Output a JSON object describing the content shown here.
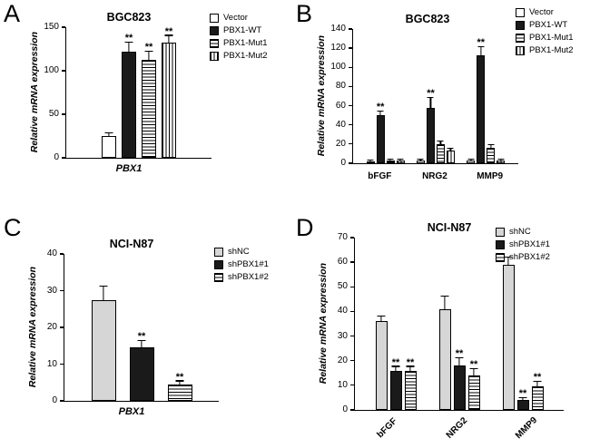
{
  "figure_background": "#ffffff",
  "colors": {
    "axis": "#000000",
    "bar_black": "#1a1a1a",
    "bar_white": "#ffffff",
    "bar_lightgray": "#d6d6d6"
  },
  "chart_data": [
    {
      "panel": "A",
      "type": "bar",
      "title": "BGC823",
      "ylabel": "Relative mRNA expression",
      "xlabel": "PBX1",
      "ylim": [
        0,
        150
      ],
      "yticks": [
        0,
        50,
        100,
        150
      ],
      "categories": [
        "PBX1"
      ],
      "legend_position": "right-outside",
      "series": [
        {
          "name": "Vector",
          "pattern": "white",
          "values": [
            25
          ],
          "errors": [
            3
          ],
          "sig": [
            ""
          ]
        },
        {
          "name": "PBX1-WT",
          "pattern": "black",
          "values": [
            122
          ],
          "errors": [
            10
          ],
          "sig": [
            "**"
          ]
        },
        {
          "name": "PBX1-Mut1",
          "pattern": "hstripe",
          "values": [
            113
          ],
          "errors": [
            9
          ],
          "sig": [
            "**"
          ]
        },
        {
          "name": "PBX1-Mut2",
          "pattern": "vstripe",
          "values": [
            132
          ],
          "errors": [
            8
          ],
          "sig": [
            "**"
          ]
        }
      ]
    },
    {
      "panel": "B",
      "type": "bar",
      "title": "BGC823",
      "ylabel": "Relative mRNA expression",
      "xlabel": "",
      "ylim": [
        0,
        140
      ],
      "yticks": [
        0,
        20,
        40,
        60,
        80,
        100,
        120,
        140
      ],
      "categories": [
        "bFGF",
        "NRG2",
        "MMP9"
      ],
      "legend_position": "right-outside",
      "series": [
        {
          "name": "Vector",
          "pattern": "white",
          "values": [
            2,
            3,
            3
          ],
          "errors": [
            0.5,
            0.5,
            0.5
          ],
          "sig": [
            "",
            "",
            ""
          ]
        },
        {
          "name": "PBX1-WT",
          "pattern": "black",
          "values": [
            50,
            58,
            113
          ],
          "errors": [
            4,
            10,
            8
          ],
          "sig": [
            "**",
            "**",
            "**"
          ]
        },
        {
          "name": "PBX1-Mut1",
          "pattern": "hstripe",
          "values": [
            3,
            20,
            16
          ],
          "errors": [
            0.5,
            3,
            3
          ],
          "sig": [
            "",
            "",
            ""
          ]
        },
        {
          "name": "PBX1-Mut2",
          "pattern": "vstripe",
          "values": [
            3,
            13,
            3
          ],
          "errors": [
            0.5,
            2,
            0.5
          ],
          "sig": [
            "",
            "",
            ""
          ]
        }
      ]
    },
    {
      "panel": "C",
      "type": "bar",
      "title": "NCI-N87",
      "ylabel": "Relative mRNA expression",
      "xlabel": "PBX1",
      "ylim": [
        0,
        40
      ],
      "yticks": [
        0,
        10,
        20,
        30,
        40
      ],
      "categories": [
        "PBX1"
      ],
      "legend_position": "right-outside",
      "series": [
        {
          "name": "shNC",
          "pattern": "lightgray",
          "values": [
            27.5
          ],
          "errors": [
            3.5
          ],
          "sig": [
            ""
          ]
        },
        {
          "name": "shPBX1#1",
          "pattern": "black",
          "values": [
            14.5
          ],
          "errors": [
            1.8
          ],
          "sig": [
            "**"
          ]
        },
        {
          "name": "shPBX1#2",
          "pattern": "hstripe",
          "values": [
            4.5
          ],
          "errors": [
            0.8
          ],
          "sig": [
            "**"
          ]
        }
      ]
    },
    {
      "panel": "D",
      "type": "bar",
      "title": "NCI-N87",
      "ylabel": "Relative mRNA expression",
      "xlabel": "",
      "ylim": [
        0,
        70
      ],
      "yticks": [
        0,
        10,
        20,
        30,
        40,
        50,
        60,
        70
      ],
      "categories": [
        "bFGF",
        "NRG2",
        "MMP9"
      ],
      "legend_position": "top-right-inside",
      "x_tick_rotation": 45,
      "series": [
        {
          "name": "shNC",
          "pattern": "lightgray",
          "values": [
            36,
            41,
            59
          ],
          "errors": [
            2,
            5,
            3
          ],
          "sig": [
            "",
            "",
            ""
          ]
        },
        {
          "name": "shPBX1#1",
          "pattern": "black",
          "values": [
            16,
            18,
            4
          ],
          "errors": [
            1.5,
            3,
            0.8
          ],
          "sig": [
            "**",
            "**",
            "**"
          ]
        },
        {
          "name": "shPBX1#2",
          "pattern": "hstripe",
          "values": [
            16,
            14,
            9.5
          ],
          "errors": [
            1.5,
            2.5,
            2
          ],
          "sig": [
            "**",
            "**",
            "**"
          ]
        }
      ]
    }
  ]
}
